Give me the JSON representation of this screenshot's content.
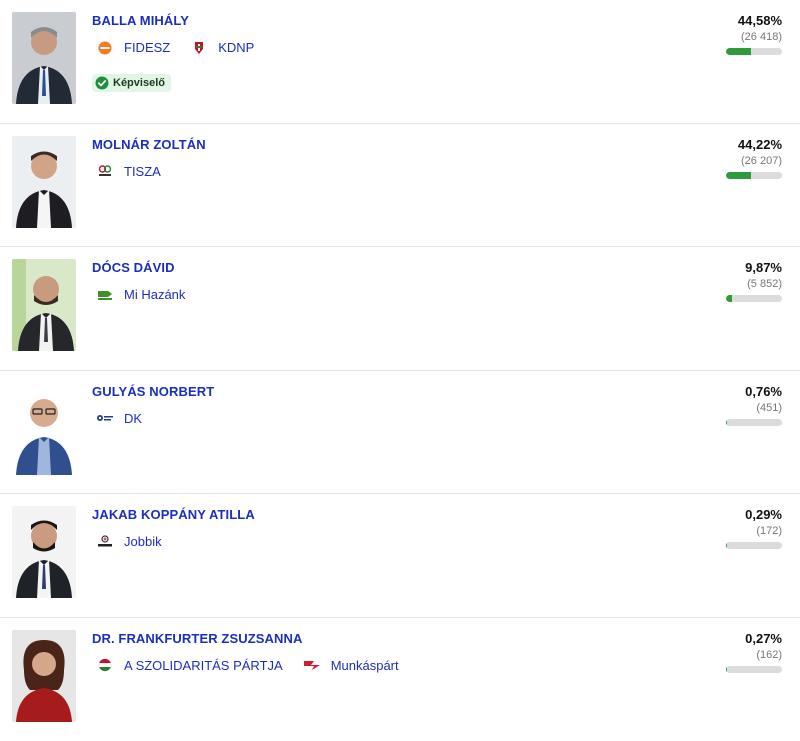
{
  "accent": "#1a2fbf",
  "bar_color": "#2e9b3a",
  "candidates": [
    {
      "name": "BALLA MIHÁLY",
      "parties": [
        {
          "label": "FIDESZ",
          "icon": "fidesz-logo-icon"
        },
        {
          "label": "KDNP",
          "icon": "kdnp-logo-icon"
        }
      ],
      "badge": "Képviselő",
      "percent": "44,58%",
      "votes": "(26 418)",
      "share": 0.4458
    },
    {
      "name": "MOLNÁR ZOLTÁN",
      "parties": [
        {
          "label": "TISZA",
          "icon": "tisza-logo-icon"
        }
      ],
      "percent": "44,22%",
      "votes": "(26 207)",
      "share": 0.4422
    },
    {
      "name": "DÓCS DÁVID",
      "parties": [
        {
          "label": "Mi Hazánk",
          "icon": "mi-hazank-logo-icon"
        }
      ],
      "percent": "9,87%",
      "votes": "(5 852)",
      "share": 0.0987
    },
    {
      "name": "GULYÁS NORBERT",
      "parties": [
        {
          "label": "DK",
          "icon": "dk-logo-icon"
        }
      ],
      "percent": "0,76%",
      "votes": "(451)",
      "share": 0.0076
    },
    {
      "name": "JAKAB KOPPÁNY ATILLA",
      "parties": [
        {
          "label": "Jobbik",
          "icon": "jobbik-logo-icon"
        }
      ],
      "percent": "0,29%",
      "votes": "(172)",
      "share": 0.0029
    },
    {
      "name": "DR. FRANKFURTER ZSUZSANNA",
      "parties": [
        {
          "label": "A SZOLIDARITÁS PÁRTJA",
          "icon": "szolidaritas-logo-icon"
        },
        {
          "label": "Munkáspárt",
          "icon": "munkaspart-logo-icon"
        }
      ],
      "percent": "0,27%",
      "votes": "(162)",
      "share": 0.0027
    }
  ]
}
